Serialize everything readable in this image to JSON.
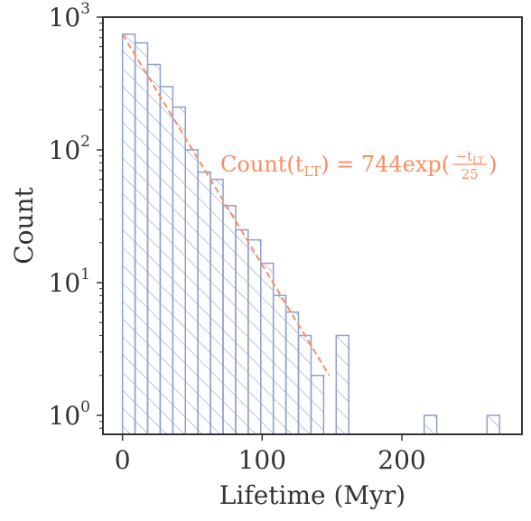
{
  "chart_data": {
    "type": "bar",
    "title": "",
    "xlabel": "Lifetime (Myr)",
    "ylabel": "Count",
    "yscale": "log",
    "xlim": [
      -14,
      286
    ],
    "ylim": [
      0.72,
      1000
    ],
    "grid": false,
    "x_ticks": [
      {
        "value": 0,
        "label": "0"
      },
      {
        "value": 100,
        "label": "100"
      },
      {
        "value": 200,
        "label": "200"
      }
    ],
    "y_ticks": [
      {
        "value": 1,
        "base": "10",
        "exp": "0"
      },
      {
        "value": 10,
        "base": "10",
        "exp": "1"
      },
      {
        "value": 100,
        "base": "10",
        "exp": "2"
      },
      {
        "value": 1000,
        "base": "10",
        "exp": "3"
      }
    ],
    "histogram": {
      "bin_width": 9,
      "bin_starts": [
        0,
        9,
        18,
        27,
        36,
        45,
        54,
        63,
        72,
        81,
        90,
        99,
        108,
        117,
        126,
        135,
        153,
        216,
        261
      ],
      "counts": [
        744,
        640,
        440,
        300,
        210,
        100,
        68,
        60,
        38,
        25,
        21,
        14,
        8,
        6,
        4,
        2,
        4,
        1,
        1
      ],
      "color": "#8da0cb",
      "hatch": "diagonal"
    },
    "fit": {
      "formula": "Count(t_LT) = 744 exp(-t_LT / 25)",
      "amplitude": 744,
      "tau": 25,
      "x_range": [
        0,
        148
      ],
      "color": "#fc8d62",
      "style": "dashed",
      "label": {
        "prefix": "Count(t",
        "sub": "LT",
        "mid": ") = 744exp(",
        "num": "−t",
        "num_sub": "LT",
        "den": "25",
        "suffix": ")"
      }
    }
  }
}
